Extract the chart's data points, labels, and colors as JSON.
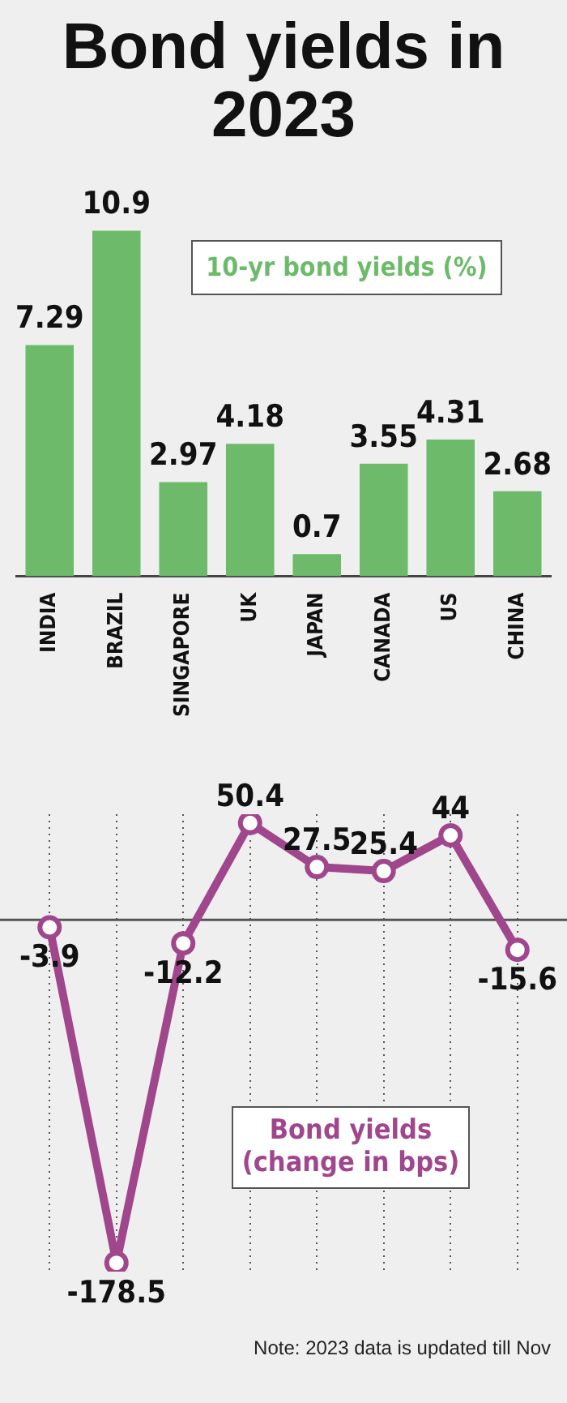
{
  "chart_data": [
    {
      "type": "bar",
      "title": "Bond yields in 2023",
      "categories": [
        "INDIA",
        "BRAZIL",
        "SINGAPORE",
        "UK",
        "JAPAN",
        "CANADA",
        "US",
        "CHINA"
      ],
      "series": [
        {
          "name": "10-yr bond yields (%)",
          "color": "#6dbb6a",
          "values": [
            7.29,
            10.9,
            2.97,
            4.18,
            0.7,
            3.55,
            4.31,
            2.68
          ]
        }
      ],
      "data_labels": true,
      "grid": false
    },
    {
      "type": "line",
      "categories": [
        null,
        null,
        null,
        null,
        null,
        null,
        null,
        null
      ],
      "tick_labels": false,
      "series": [
        {
          "name": "Bond yields\n(change in bps)",
          "color": "#a0468c",
          "values": [
            -3.9,
            -178.5,
            -12.2,
            50.4,
            27.5,
            25.4,
            44,
            -15.6
          ]
        }
      ],
      "data_labels": true,
      "grid": "x",
      "marker": "circle",
      "line_style": "solid",
      "ref_lines": [
        {
          "axis": "y",
          "value": 0,
          "color": "#555555"
        }
      ],
      "annotations": [
        "Note: 2023 data is updated till Nov"
      ]
    }
  ]
}
